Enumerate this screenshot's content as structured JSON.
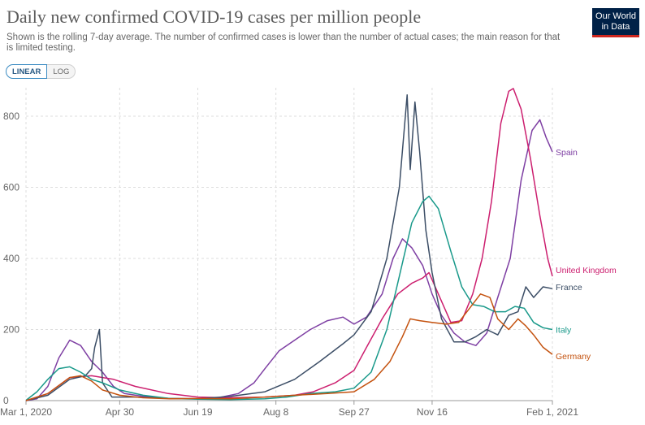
{
  "header": {
    "title": "Daily new confirmed COVID-19 cases per million people",
    "subtitle": "Shown is the rolling 7-day average. The number of confirmed cases is lower than the number of actual cases; the main reason for that is limited testing.",
    "logo_line1": "Our World",
    "logo_line2": "in Data"
  },
  "controls": {
    "linear_label": "LINEAR",
    "log_label": "LOG",
    "selected": "LINEAR"
  },
  "colors": {
    "France": "#3c4e66",
    "Spain": "#7e3fa3",
    "United Kingdom": "#cc1f6f",
    "Italy": "#19998a",
    "Germany": "#c4520f"
  },
  "chart_data": {
    "type": "line",
    "title": "Daily new confirmed COVID-19 cases per million people",
    "x_axis": {
      "type": "date",
      "range": [
        "2020-03-01",
        "2021-02-01"
      ],
      "tick_labels": [
        "Mar 1, 2020",
        "Apr 30",
        "Jun 19",
        "Aug 8",
        "Sep 27",
        "Nov 16",
        "Feb 1, 2021"
      ],
      "tick_dates": [
        "2020-03-01",
        "2020-04-30",
        "2020-06-19",
        "2020-08-08",
        "2020-09-27",
        "2020-11-16",
        "2021-02-01"
      ]
    },
    "y_axis": {
      "range": [
        0,
        880
      ],
      "ticks": [
        0,
        200,
        400,
        600,
        800
      ]
    },
    "grid": "horizontal dashed",
    "legend": "end-of-line labels",
    "series": [
      {
        "name": "Spain",
        "points": [
          [
            "2020-03-01",
            0
          ],
          [
            "2020-03-08",
            5
          ],
          [
            "2020-03-15",
            40
          ],
          [
            "2020-03-22",
            120
          ],
          [
            "2020-03-29",
            170
          ],
          [
            "2020-04-05",
            155
          ],
          [
            "2020-04-12",
            110
          ],
          [
            "2020-04-19",
            80
          ],
          [
            "2020-04-26",
            40
          ],
          [
            "2020-05-03",
            20
          ],
          [
            "2020-05-15",
            12
          ],
          [
            "2020-06-01",
            6
          ],
          [
            "2020-06-15",
            5
          ],
          [
            "2020-07-01",
            7
          ],
          [
            "2020-07-15",
            20
          ],
          [
            "2020-07-25",
            50
          ],
          [
            "2020-08-01",
            90
          ],
          [
            "2020-08-10",
            140
          ],
          [
            "2020-08-20",
            170
          ],
          [
            "2020-08-30",
            200
          ],
          [
            "2020-09-10",
            225
          ],
          [
            "2020-09-20",
            235
          ],
          [
            "2020-09-27",
            215
          ],
          [
            "2020-10-05",
            235
          ],
          [
            "2020-10-15",
            300
          ],
          [
            "2020-10-22",
            400
          ],
          [
            "2020-10-28",
            455
          ],
          [
            "2020-11-03",
            430
          ],
          [
            "2020-11-10",
            380
          ],
          [
            "2020-11-16",
            300
          ],
          [
            "2020-11-22",
            240
          ],
          [
            "2020-11-30",
            190
          ],
          [
            "2020-12-07",
            165
          ],
          [
            "2020-12-14",
            155
          ],
          [
            "2020-12-21",
            190
          ],
          [
            "2020-12-28",
            290
          ],
          [
            "2021-01-05",
            400
          ],
          [
            "2021-01-12",
            620
          ],
          [
            "2021-01-19",
            760
          ],
          [
            "2021-01-24",
            790
          ],
          [
            "2021-01-28",
            740
          ],
          [
            "2021-02-01",
            700
          ]
        ]
      },
      {
        "name": "United Kingdom",
        "points": [
          [
            "2020-03-01",
            0
          ],
          [
            "2020-03-15",
            20
          ],
          [
            "2020-03-29",
            65
          ],
          [
            "2020-04-12",
            70
          ],
          [
            "2020-04-26",
            60
          ],
          [
            "2020-05-10",
            40
          ],
          [
            "2020-05-31",
            20
          ],
          [
            "2020-06-19",
            10
          ],
          [
            "2020-07-08",
            8
          ],
          [
            "2020-08-01",
            10
          ],
          [
            "2020-08-20",
            15
          ],
          [
            "2020-09-01",
            25
          ],
          [
            "2020-09-15",
            50
          ],
          [
            "2020-09-27",
            85
          ],
          [
            "2020-10-05",
            150
          ],
          [
            "2020-10-15",
            230
          ],
          [
            "2020-10-25",
            300
          ],
          [
            "2020-11-03",
            330
          ],
          [
            "2020-11-10",
            345
          ],
          [
            "2020-11-14",
            360
          ],
          [
            "2020-11-20",
            300
          ],
          [
            "2020-11-28",
            220
          ],
          [
            "2020-12-05",
            225
          ],
          [
            "2020-12-12",
            300
          ],
          [
            "2020-12-18",
            400
          ],
          [
            "2020-12-24",
            560
          ],
          [
            "2020-12-30",
            780
          ],
          [
            "2021-01-04",
            870
          ],
          [
            "2021-01-07",
            878
          ],
          [
            "2021-01-12",
            820
          ],
          [
            "2021-01-18",
            680
          ],
          [
            "2021-01-24",
            520
          ],
          [
            "2021-01-29",
            400
          ],
          [
            "2021-02-01",
            350
          ]
        ]
      },
      {
        "name": "France",
        "points": [
          [
            "2020-03-01",
            0
          ],
          [
            "2020-03-15",
            15
          ],
          [
            "2020-03-29",
            60
          ],
          [
            "2020-04-08",
            70
          ],
          [
            "2020-04-12",
            90
          ],
          [
            "2020-04-14",
            150
          ],
          [
            "2020-04-17",
            200
          ],
          [
            "2020-04-19",
            50
          ],
          [
            "2020-04-25",
            10
          ],
          [
            "2020-05-10",
            10
          ],
          [
            "2020-06-01",
            6
          ],
          [
            "2020-06-19",
            5
          ],
          [
            "2020-07-10",
            12
          ],
          [
            "2020-08-01",
            25
          ],
          [
            "2020-08-20",
            60
          ],
          [
            "2020-09-05",
            110
          ],
          [
            "2020-09-20",
            160
          ],
          [
            "2020-09-27",
            185
          ],
          [
            "2020-10-08",
            250
          ],
          [
            "2020-10-18",
            400
          ],
          [
            "2020-10-26",
            600
          ],
          [
            "2020-10-31",
            860
          ],
          [
            "2020-11-02",
            650
          ],
          [
            "2020-11-05",
            840
          ],
          [
            "2020-11-08",
            700
          ],
          [
            "2020-11-12",
            480
          ],
          [
            "2020-11-16",
            360
          ],
          [
            "2020-11-22",
            230
          ],
          [
            "2020-11-30",
            165
          ],
          [
            "2020-12-07",
            165
          ],
          [
            "2020-12-14",
            180
          ],
          [
            "2020-12-21",
            200
          ],
          [
            "2020-12-28",
            185
          ],
          [
            "2021-01-04",
            240
          ],
          [
            "2021-01-10",
            250
          ],
          [
            "2021-01-15",
            320
          ],
          [
            "2021-01-20",
            290
          ],
          [
            "2021-01-26",
            320
          ],
          [
            "2021-02-01",
            315
          ]
        ]
      },
      {
        "name": "Italy",
        "points": [
          [
            "2020-03-01",
            1
          ],
          [
            "2020-03-08",
            25
          ],
          [
            "2020-03-15",
            60
          ],
          [
            "2020-03-22",
            90
          ],
          [
            "2020-03-29",
            95
          ],
          [
            "2020-04-05",
            80
          ],
          [
            "2020-04-12",
            60
          ],
          [
            "2020-04-19",
            50
          ],
          [
            "2020-04-30",
            30
          ],
          [
            "2020-05-15",
            15
          ],
          [
            "2020-06-01",
            6
          ],
          [
            "2020-06-19",
            4
          ],
          [
            "2020-07-10",
            3
          ],
          [
            "2020-08-01",
            5
          ],
          [
            "2020-08-15",
            10
          ],
          [
            "2020-08-30",
            20
          ],
          [
            "2020-09-15",
            25
          ],
          [
            "2020-09-27",
            35
          ],
          [
            "2020-10-08",
            80
          ],
          [
            "2020-10-18",
            200
          ],
          [
            "2020-10-26",
            350
          ],
          [
            "2020-11-03",
            500
          ],
          [
            "2020-11-10",
            560
          ],
          [
            "2020-11-14",
            575
          ],
          [
            "2020-11-20",
            540
          ],
          [
            "2020-11-28",
            420
          ],
          [
            "2020-12-05",
            320
          ],
          [
            "2020-12-12",
            270
          ],
          [
            "2020-12-19",
            265
          ],
          [
            "2020-12-26",
            250
          ],
          [
            "2021-01-02",
            250
          ],
          [
            "2021-01-08",
            265
          ],
          [
            "2021-01-14",
            260
          ],
          [
            "2021-01-20",
            220
          ],
          [
            "2021-01-26",
            205
          ],
          [
            "2021-02-01",
            200
          ]
        ]
      },
      {
        "name": "Germany",
        "points": [
          [
            "2020-03-01",
            0
          ],
          [
            "2020-03-15",
            20
          ],
          [
            "2020-03-29",
            65
          ],
          [
            "2020-04-05",
            70
          ],
          [
            "2020-04-12",
            55
          ],
          [
            "2020-04-19",
            30
          ],
          [
            "2020-04-30",
            15
          ],
          [
            "2020-05-15",
            8
          ],
          [
            "2020-06-01",
            5
          ],
          [
            "2020-06-19",
            6
          ],
          [
            "2020-07-10",
            5
          ],
          [
            "2020-08-01",
            10
          ],
          [
            "2020-08-20",
            15
          ],
          [
            "2020-09-10",
            20
          ],
          [
            "2020-09-27",
            25
          ],
          [
            "2020-10-10",
            60
          ],
          [
            "2020-10-20",
            110
          ],
          [
            "2020-10-28",
            180
          ],
          [
            "2020-11-02",
            230
          ],
          [
            "2020-11-08",
            225
          ],
          [
            "2020-11-16",
            220
          ],
          [
            "2020-11-25",
            215
          ],
          [
            "2020-12-03",
            220
          ],
          [
            "2020-12-10",
            260
          ],
          [
            "2020-12-17",
            300
          ],
          [
            "2020-12-23",
            290
          ],
          [
            "2020-12-28",
            230
          ],
          [
            "2021-01-04",
            200
          ],
          [
            "2021-01-10",
            230
          ],
          [
            "2021-01-15",
            210
          ],
          [
            "2021-01-20",
            185
          ],
          [
            "2021-01-26",
            150
          ],
          [
            "2021-02-01",
            130
          ]
        ]
      }
    ]
  }
}
